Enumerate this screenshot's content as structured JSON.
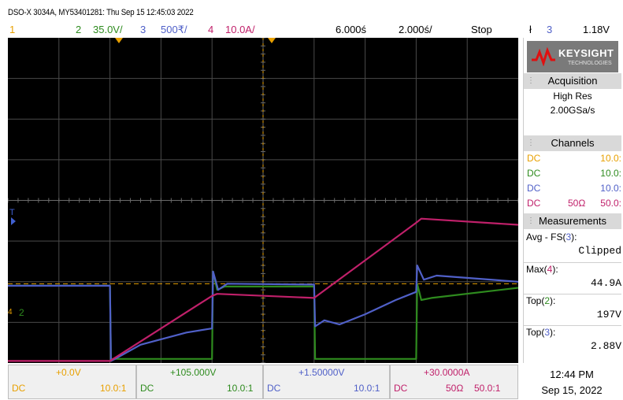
{
  "title_line": "DSO-X 3034A, MY53401281: Thu Sep 15 12:45:03 2022",
  "header": {
    "ch1_num": "1",
    "ch2_num": "2",
    "ch2_scale": "35.0V/",
    "ch3_num": "3",
    "ch3_scale": "500₹/",
    "ch4_num": "4",
    "ch4_scale": "10.0A/",
    "time_delay": "6.000ś",
    "time_scale": "2.000ś/",
    "run_state": "Stop",
    "trigger_symbol": "ł",
    "trigger_ch": "3",
    "trigger_level": "1.18V"
  },
  "colors": {
    "ch1": "#e8a000",
    "ch2": "#2e8b1e",
    "ch3": "#5060c8",
    "ch4": "#c0206a",
    "cursor": "#e8a000"
  },
  "brand": {
    "name": "KEYSIGHT",
    "sub": "TECHNOLOGIES",
    "logo_color": "#e01010"
  },
  "side": {
    "acq_title": "Acquisition",
    "acq_mode": "High Res",
    "acq_rate": "2.00GSa/s",
    "channels_title": "Channels",
    "channels": [
      {
        "coupling": "DC",
        "imp": "",
        "probe": "10.0:"
      },
      {
        "coupling": "DC",
        "imp": "",
        "probe": "10.0:"
      },
      {
        "coupling": "DC",
        "imp": "",
        "probe": "10.0:"
      },
      {
        "coupling": "DC",
        "imp": "50Ω",
        "probe": "50.0:"
      }
    ],
    "meas_title": "Measurements",
    "measurements": [
      {
        "label": "Avg - FS",
        "ch": "3",
        "value": "Clipped"
      },
      {
        "label": "Max",
        "ch": "4",
        "value": "44.9A"
      },
      {
        "label": "Top",
        "ch": "2",
        "value": "197V"
      },
      {
        "label": "Top",
        "ch": "3",
        "value": "2.88V"
      }
    ]
  },
  "markers": {
    "trig_level_marker": "T",
    "ch2_marker": "2",
    "ch4_marker": "4"
  },
  "bottom": {
    "ch1": {
      "offset": "+0.0V",
      "coupling": "DC",
      "probe": "10.0:1"
    },
    "ch2": {
      "offset": "+105.000V",
      "coupling": "DC",
      "probe": "10.0:1"
    },
    "ch3": {
      "offset": "+1.50000V",
      "coupling": "DC",
      "probe": "10.0:1"
    },
    "ch4": {
      "offset": "+30.0000A",
      "coupling": "DC",
      "imp": "50Ω",
      "probe": "50.0:1"
    },
    "clock_time": "12:44 PM",
    "clock_date": "Sep 15, 2022"
  },
  "chart_data": {
    "type": "line",
    "x_divisions": 10,
    "y_divisions": 8,
    "x_unit": "s",
    "series": [
      {
        "channel": "2",
        "color": "#2e8b1e",
        "points": [
          [
            0,
            1.9
          ],
          [
            2.0,
            1.9
          ],
          [
            2.02,
            0.1
          ],
          [
            4.0,
            0.1
          ],
          [
            4.02,
            2.25
          ],
          [
            4.1,
            1.8
          ],
          [
            4.25,
            1.88
          ],
          [
            6.0,
            1.88
          ],
          [
            6.02,
            0.1
          ],
          [
            8.0,
            0.1
          ],
          [
            8.02,
            1.95
          ],
          [
            8.1,
            1.55
          ],
          [
            8.3,
            1.6
          ],
          [
            10,
            1.85
          ]
        ]
      },
      {
        "channel": "3",
        "color": "#5060c8",
        "points": [
          [
            0,
            1.9
          ],
          [
            2.0,
            1.9
          ],
          [
            2.02,
            0.05
          ],
          [
            2.1,
            0.1
          ],
          [
            2.6,
            0.45
          ],
          [
            3.5,
            0.75
          ],
          [
            4.0,
            0.85
          ],
          [
            4.02,
            2.25
          ],
          [
            4.12,
            1.8
          ],
          [
            4.3,
            1.95
          ],
          [
            6.0,
            1.93
          ],
          [
            6.02,
            0.9
          ],
          [
            6.2,
            1.05
          ],
          [
            6.5,
            0.95
          ],
          [
            7.0,
            1.2
          ],
          [
            7.6,
            1.55
          ],
          [
            8.0,
            1.75
          ],
          [
            8.02,
            2.4
          ],
          [
            8.15,
            2.05
          ],
          [
            8.4,
            2.15
          ],
          [
            10,
            2.0
          ]
        ]
      },
      {
        "channel": "4",
        "color": "#c0206a",
        "points": [
          [
            0,
            0.05
          ],
          [
            2.0,
            0.05
          ],
          [
            4.0,
            1.65
          ],
          [
            4.1,
            1.7
          ],
          [
            6.0,
            1.6
          ],
          [
            8.0,
            3.45
          ],
          [
            8.1,
            3.55
          ],
          [
            10,
            3.4
          ]
        ]
      }
    ],
    "reference_level_y": 1.95,
    "trigger_time_x": 2.0,
    "center_time_x": 5.0
  }
}
